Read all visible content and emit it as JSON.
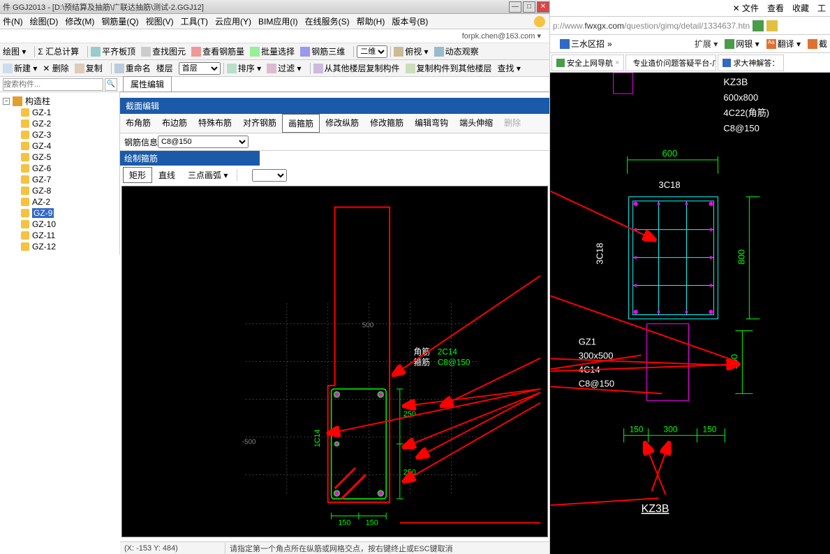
{
  "title": "件 GGJ2013 - [D:\\预结算及抽筋\\广联达抽筋\\测试-2.GGJ12]",
  "menus": [
    "件(N)",
    "绘图(D)",
    "修改(M)",
    "钢筋量(Q)",
    "视图(V)",
    "工具(T)",
    "云应用(Y)",
    "BIM应用(I)",
    "在线服务(S)",
    "帮助(H)",
    "版本号(B)"
  ],
  "user": "forpk.chen@163.com",
  "toolbar1": [
    "绘图 ▾",
    "Σ 汇总计算",
    "平齐板顶",
    "查找图元",
    "查看钢筋量",
    "批量选择",
    "钢筋三维"
  ],
  "tb1_select": "二维",
  "tb1_trail": [
    "俯视 ▾",
    "动态观察"
  ],
  "toolbar2": [
    "新建 ▾",
    "✕ 删除",
    "复制",
    "重命名",
    "楼层",
    "首层"
  ],
  "tb2_trail": [
    "排序 ▾",
    "过滤 ▾",
    "从其他楼层复制构件",
    "复制构件到其他楼层",
    "查找 ▾"
  ],
  "search_ph": "搜索构件...",
  "tree_root": "构造柱",
  "tree_items": [
    "GZ-1",
    "GZ-2",
    "GZ-3",
    "GZ-4",
    "GZ-5",
    "GZ-6",
    "GZ-7",
    "GZ-8",
    "AZ-2",
    "GZ-9",
    "GZ-10",
    "GZ-11",
    "GZ-12"
  ],
  "tree_selected": 9,
  "prop_tab": "属性编辑",
  "section_title": "截面编辑",
  "sect_tabs": [
    "布角筋",
    "布边筋",
    "特殊布筋",
    "对齐钢筋",
    "画箍筋",
    "修改纵筋",
    "修改箍筋",
    "编辑弯钩",
    "端头伸缩",
    "删除"
  ],
  "sect_active": 4,
  "rebar_info_label": "钢筋信息",
  "rebar_info_value": "C8@150",
  "draw_title": "绘制箍筋",
  "draw_tabs": [
    "矩形",
    "直线",
    "三点画弧 ▾"
  ],
  "draw_active": 0,
  "status_coord": "(X: -153 Y: 484)",
  "status_msg": "请指定第一个角点所在纵筋或网格交点，按右键终止或ESC键取消",
  "canvas": {
    "bg": "#000000",
    "grid": "#404040",
    "outline": "#ff0000",
    "rebar": "#00ff00",
    "dim": "#00ff00",
    "label_white": "#ffffff",
    "labels": {
      "corner_lbl": "角筋",
      "corner_val": "2C14",
      "stir_lbl": "箍筋",
      "stir_val": "C8@150",
      "side": "1C14",
      "d250a": "250",
      "d250b": "250",
      "d150a": "150",
      "d150b": "150",
      "d500a": "500",
      "d500b": "-500"
    }
  },
  "browser": {
    "menu": [
      "✕ 文件",
      "查看",
      "收藏",
      "工"
    ],
    "url_pre": "p://www.",
    "url_host": "fwxgx.com",
    "url_path": "/question/gimq/detail/1334637.htn",
    "favbar_label": "三水区招",
    "tools": [
      {
        "label": "扩展 ▾",
        "color": "#4a9c4a"
      },
      {
        "label": "网银 ▾",
        "color": "#4a9c4a"
      },
      {
        "label": "翻译 ▾",
        "color": "#e07030"
      },
      {
        "label": "截",
        "color": "#e07030"
      }
    ],
    "tabs": [
      {
        "label": "安全上网导航",
        "color": "#4a9c4a"
      },
      {
        "label": "专业造价问题答疑平台-广联",
        "color": "#3169c6"
      },
      {
        "label": "求大神解答：",
        "color": "#3169c6"
      }
    ],
    "cad": {
      "kz3b": "KZ3B",
      "kz3b_size": "600x800",
      "kz3b_corner": "4C22(角筋)",
      "kz3b_stir": "C8@150",
      "d600": "600",
      "d800": "800",
      "d3c18_top": "3C18",
      "d3c18_side": "3C18",
      "gz1": "GZ1",
      "gz1_size": "300x500",
      "gz1_corner": "4C14",
      "gz1_stir": "C8@150",
      "d150l": "150",
      "d300": "300",
      "d150r": "150",
      "d500": "500",
      "kz3b_bottom": "KZ3B"
    }
  }
}
